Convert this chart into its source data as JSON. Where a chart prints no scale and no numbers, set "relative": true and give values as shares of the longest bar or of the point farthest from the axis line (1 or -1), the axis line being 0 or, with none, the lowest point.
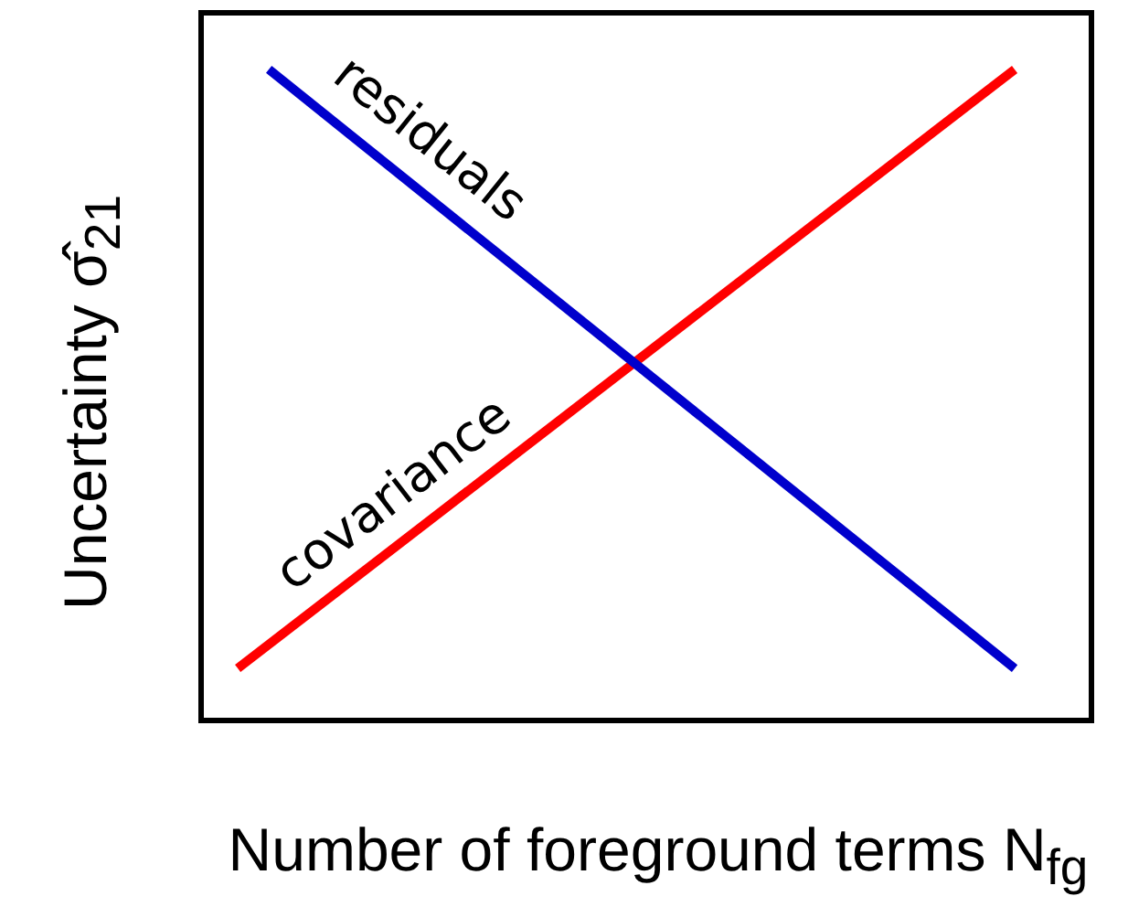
{
  "chart_data": {
    "type": "line",
    "xlabel": "Number of foreground terms N$_{fg}$",
    "ylabel": "Uncertainty σ̂$_{21}$",
    "categories": [
      null,
      null,
      null,
      null,
      null,
      null,
      null,
      null,
      null,
      null,
      null,
      null,
      null,
      null,
      null,
      null,
      null,
      null,
      null,
      null,
      null,
      null,
      null,
      null,
      null,
      null
    ],
    "relative": true,
    "series": [
      {
        "name": "residuals",
        "color": "#0000cc",
        "values": [
          null,
          1,
          null,
          null,
          null,
          null,
          null,
          null,
          null,
          null,
          null,
          null,
          null,
          null,
          null,
          null,
          null,
          null,
          null,
          null,
          null,
          null,
          null,
          null,
          null,
          0.08
        ]
      },
      {
        "name": "covariance",
        "color": "#ff0000",
        "values": [
          0.08,
          null,
          null,
          null,
          null,
          null,
          null,
          null,
          null,
          null,
          null,
          null,
          null,
          null,
          null,
          null,
          null,
          null,
          null,
          null,
          null,
          null,
          null,
          null,
          null,
          1
        ]
      }
    ]
  }
}
